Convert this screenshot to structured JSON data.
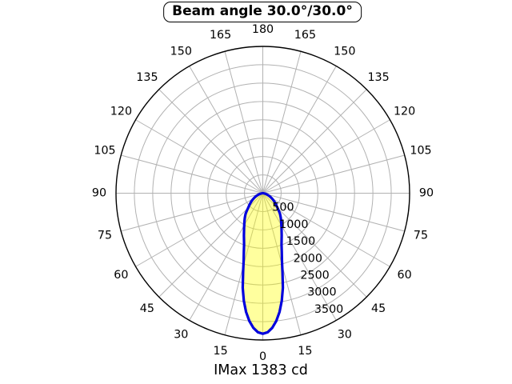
{
  "title": {
    "text": "Beam angle 30.0°/30.0°"
  },
  "caption": {
    "text": "IMax 1383 cd"
  },
  "chart_data": {
    "type": "polar",
    "subtype": "luminous-intensity-distribution",
    "title": "Beam angle 30.0°/30.0°",
    "caption": "IMax 1383 cd",
    "imax_cd": 1383,
    "beam_angle_deg": "30.0/30.0",
    "angle_ticks_deg": [
      0,
      15,
      30,
      45,
      60,
      75,
      90,
      105,
      120,
      135,
      150,
      165,
      180
    ],
    "angle_ticks_mirrored": true,
    "angle_grid_step_deg": 15,
    "radial_ticks": [
      500,
      1000,
      1500,
      2000,
      2500,
      3000,
      3500
    ],
    "radial_max": 4000,
    "radial_tick_angle_deg": 22.5,
    "grid": "on",
    "curve": {
      "mirror": true,
      "angles_deg": [
        0,
        2.5,
        5,
        7.5,
        10,
        12.5,
        15,
        17.5,
        20,
        22.5,
        25,
        27.5,
        30,
        35,
        40,
        45,
        50,
        55,
        60,
        65,
        70,
        75,
        80,
        85,
        90
      ],
      "intensity": [
        3830,
        3780,
        3610,
        3340,
        2980,
        2550,
        2000,
        1720,
        1490,
        1340,
        1215,
        1105,
        1010,
        860,
        725,
        560,
        460,
        370,
        290,
        215,
        145,
        85,
        38,
        10,
        0
      ]
    },
    "colors": {
      "lobe_fill": "rgba(255,255,0,0.38)",
      "lobe_stroke": "#0000dd",
      "grid_line": "#b2b2b2",
      "outer_circle": "#000000",
      "text": "#000000",
      "background": "#ffffff"
    }
  }
}
